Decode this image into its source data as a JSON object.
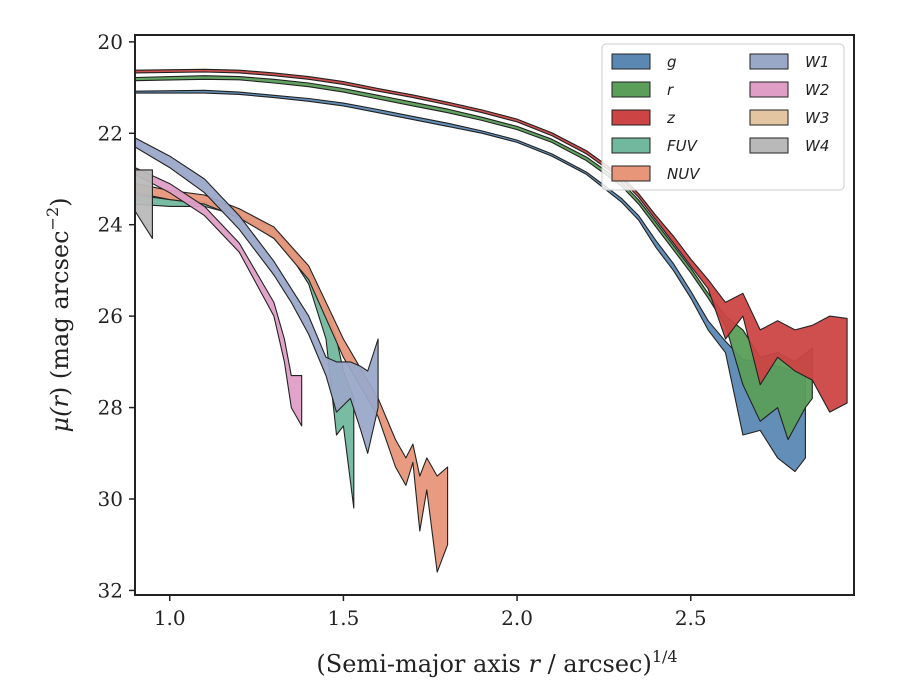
{
  "chart_data": {
    "type": "area",
    "xlabel_text": "(Semi-major axis ",
    "xlabel_var": "r",
    "xlabel_unit": " / arcsec)",
    "xlabel_exp": "1/4",
    "ylabel_prefix": "μ(",
    "ylabel_var": "r",
    "ylabel_mid": ") (mag arcsec",
    "ylabel_exp": "−2",
    "ylabel_suffix": ")",
    "xlim": [
      0.9,
      2.97
    ],
    "ylim": [
      32.1,
      19.85
    ],
    "y_inverted": true,
    "xticks": [
      1.0,
      1.5,
      2.0,
      2.5
    ],
    "xtick_labels": [
      "1.0",
      "1.5",
      "2.0",
      "2.5"
    ],
    "yticks": [
      20,
      22,
      24,
      26,
      28,
      30,
      32
    ],
    "ytick_labels": [
      "20",
      "22",
      "24",
      "26",
      "28",
      "30",
      "32"
    ],
    "grid": false,
    "legend_position": "top-right",
    "legend_columns": 2,
    "series": [
      {
        "name": "g",
        "color": "#5b88b3",
        "lower": [
          [
            0.9,
            21.12
          ],
          [
            1.1,
            21.12
          ],
          [
            1.2,
            21.15
          ],
          [
            1.3,
            21.22
          ],
          [
            1.4,
            21.3
          ],
          [
            1.5,
            21.4
          ],
          [
            1.6,
            21.55
          ],
          [
            1.7,
            21.7
          ],
          [
            1.8,
            21.85
          ],
          [
            1.9,
            22.0
          ],
          [
            2.0,
            22.2
          ],
          [
            2.1,
            22.5
          ],
          [
            2.2,
            22.9
          ],
          [
            2.3,
            23.5
          ],
          [
            2.35,
            23.9
          ],
          [
            2.4,
            24.5
          ],
          [
            2.45,
            25.0
          ],
          [
            2.5,
            25.6
          ],
          [
            2.55,
            26.3
          ],
          [
            2.6,
            26.8
          ],
          [
            2.65,
            28.6
          ],
          [
            2.7,
            28.5
          ],
          [
            2.75,
            29.1
          ],
          [
            2.8,
            29.4
          ],
          [
            2.83,
            29.1
          ],
          [
            2.83,
            27.5
          ]
        ],
        "upper": [
          [
            0.9,
            21.08
          ],
          [
            1.1,
            21.06
          ],
          [
            1.2,
            21.1
          ],
          [
            1.3,
            21.17
          ],
          [
            1.4,
            21.24
          ],
          [
            1.5,
            21.34
          ],
          [
            1.6,
            21.48
          ],
          [
            1.7,
            21.63
          ],
          [
            1.8,
            21.78
          ],
          [
            1.9,
            21.95
          ],
          [
            2.0,
            22.15
          ],
          [
            2.1,
            22.45
          ],
          [
            2.2,
            22.85
          ],
          [
            2.3,
            23.42
          ],
          [
            2.35,
            23.8
          ],
          [
            2.4,
            24.35
          ],
          [
            2.45,
            24.85
          ],
          [
            2.5,
            25.45
          ],
          [
            2.55,
            26.1
          ],
          [
            2.6,
            26.55
          ],
          [
            2.65,
            26.95
          ],
          [
            2.7,
            27.0
          ],
          [
            2.75,
            27.1
          ],
          [
            2.8,
            27.2
          ],
          [
            2.83,
            27.3
          ]
        ]
      },
      {
        "name": "r",
        "color": "#5a9e5a",
        "lower": [
          [
            0.9,
            20.85
          ],
          [
            1.1,
            20.82
          ],
          [
            1.2,
            20.83
          ],
          [
            1.3,
            20.9
          ],
          [
            1.4,
            20.98
          ],
          [
            1.5,
            21.1
          ],
          [
            1.6,
            21.25
          ],
          [
            1.7,
            21.4
          ],
          [
            1.8,
            21.55
          ],
          [
            1.9,
            21.72
          ],
          [
            2.0,
            21.92
          ],
          [
            2.1,
            22.2
          ],
          [
            2.2,
            22.6
          ],
          [
            2.3,
            23.15
          ],
          [
            2.35,
            23.55
          ],
          [
            2.4,
            24.05
          ],
          [
            2.45,
            24.55
          ],
          [
            2.5,
            25.05
          ],
          [
            2.55,
            25.6
          ],
          [
            2.6,
            26.2
          ],
          [
            2.65,
            27.5
          ],
          [
            2.7,
            28.3
          ],
          [
            2.75,
            28.0
          ],
          [
            2.78,
            28.7
          ],
          [
            2.83,
            28.0
          ],
          [
            2.85,
            27.8
          ]
        ],
        "upper": [
          [
            0.9,
            20.78
          ],
          [
            1.1,
            20.74
          ],
          [
            1.2,
            20.76
          ],
          [
            1.3,
            20.82
          ],
          [
            1.4,
            20.9
          ],
          [
            1.5,
            21.02
          ],
          [
            1.6,
            21.17
          ],
          [
            1.7,
            21.32
          ],
          [
            1.8,
            21.47
          ],
          [
            1.9,
            21.65
          ],
          [
            2.0,
            21.85
          ],
          [
            2.1,
            22.13
          ],
          [
            2.2,
            22.52
          ],
          [
            2.3,
            23.06
          ],
          [
            2.35,
            23.46
          ],
          [
            2.4,
            23.95
          ],
          [
            2.45,
            24.45
          ],
          [
            2.5,
            24.95
          ],
          [
            2.55,
            25.5
          ],
          [
            2.6,
            26.0
          ],
          [
            2.65,
            26.3
          ],
          [
            2.7,
            26.9
          ],
          [
            2.75,
            26.8
          ],
          [
            2.8,
            27.0
          ],
          [
            2.85,
            26.7
          ]
        ]
      },
      {
        "name": "z",
        "color": "#cc4444",
        "lower": [
          [
            0.9,
            20.68
          ],
          [
            1.1,
            20.66
          ],
          [
            1.2,
            20.68
          ],
          [
            1.3,
            20.74
          ],
          [
            1.4,
            20.82
          ],
          [
            1.5,
            20.93
          ],
          [
            1.6,
            21.08
          ],
          [
            1.7,
            21.22
          ],
          [
            1.8,
            21.38
          ],
          [
            1.9,
            21.55
          ],
          [
            2.0,
            21.75
          ],
          [
            2.1,
            22.05
          ],
          [
            2.2,
            22.45
          ],
          [
            2.3,
            23.0
          ],
          [
            2.35,
            23.4
          ],
          [
            2.4,
            23.9
          ],
          [
            2.45,
            24.4
          ],
          [
            2.5,
            24.9
          ],
          [
            2.55,
            25.4
          ],
          [
            2.6,
            26.5
          ],
          [
            2.65,
            26.0
          ],
          [
            2.7,
            27.5
          ],
          [
            2.75,
            26.9
          ],
          [
            2.8,
            27.2
          ],
          [
            2.85,
            27.4
          ],
          [
            2.9,
            28.1
          ],
          [
            2.95,
            27.9
          ]
        ],
        "upper": [
          [
            0.9,
            20.62
          ],
          [
            1.1,
            20.6
          ],
          [
            1.2,
            20.62
          ],
          [
            1.3,
            20.68
          ],
          [
            1.4,
            20.76
          ],
          [
            1.5,
            20.87
          ],
          [
            1.6,
            21.02
          ],
          [
            1.7,
            21.16
          ],
          [
            1.8,
            21.32
          ],
          [
            1.9,
            21.49
          ],
          [
            2.0,
            21.69
          ],
          [
            2.1,
            21.99
          ],
          [
            2.2,
            22.38
          ],
          [
            2.3,
            22.93
          ],
          [
            2.35,
            23.32
          ],
          [
            2.4,
            23.8
          ],
          [
            2.45,
            24.25
          ],
          [
            2.5,
            24.75
          ],
          [
            2.55,
            25.2
          ],
          [
            2.6,
            25.7
          ],
          [
            2.65,
            25.5
          ],
          [
            2.7,
            26.3
          ],
          [
            2.75,
            26.1
          ],
          [
            2.8,
            26.3
          ],
          [
            2.85,
            26.2
          ],
          [
            2.9,
            26.0
          ],
          [
            2.95,
            26.05
          ]
        ]
      },
      {
        "name": "FUV",
        "color": "#72b89e",
        "lower": [
          [
            0.9,
            23.55
          ],
          [
            1.0,
            23.6
          ],
          [
            1.1,
            23.6
          ],
          [
            1.2,
            23.8
          ],
          [
            1.3,
            24.3
          ],
          [
            1.35,
            24.7
          ],
          [
            1.4,
            25.3
          ],
          [
            1.45,
            26.5
          ],
          [
            1.48,
            28.6
          ],
          [
            1.5,
            28.4
          ],
          [
            1.53,
            30.2
          ]
        ],
        "upper": [
          [
            0.9,
            23.35
          ],
          [
            1.0,
            23.45
          ],
          [
            1.1,
            23.5
          ],
          [
            1.2,
            23.65
          ],
          [
            1.3,
            24.1
          ],
          [
            1.35,
            24.5
          ],
          [
            1.4,
            25.0
          ],
          [
            1.45,
            25.8
          ],
          [
            1.48,
            26.5
          ],
          [
            1.5,
            27.2
          ],
          [
            1.53,
            27.8
          ]
        ]
      },
      {
        "name": "NUV",
        "color": "#e8967a",
        "lower": [
          [
            0.9,
            23.3
          ],
          [
            1.0,
            23.45
          ],
          [
            1.1,
            23.55
          ],
          [
            1.2,
            23.85
          ],
          [
            1.3,
            24.3
          ],
          [
            1.4,
            25.2
          ],
          [
            1.5,
            26.9
          ],
          [
            1.6,
            28.2
          ],
          [
            1.65,
            29.3
          ],
          [
            1.68,
            29.7
          ],
          [
            1.7,
            29.2
          ],
          [
            1.72,
            30.7
          ],
          [
            1.74,
            29.8
          ],
          [
            1.77,
            31.6
          ],
          [
            1.8,
            31.0
          ]
        ],
        "upper": [
          [
            0.9,
            23.1
          ],
          [
            1.0,
            23.25
          ],
          [
            1.1,
            23.35
          ],
          [
            1.2,
            23.65
          ],
          [
            1.3,
            24.05
          ],
          [
            1.4,
            24.9
          ],
          [
            1.5,
            26.5
          ],
          [
            1.6,
            27.8
          ],
          [
            1.65,
            28.7
          ],
          [
            1.68,
            29.1
          ],
          [
            1.7,
            28.8
          ],
          [
            1.72,
            29.5
          ],
          [
            1.74,
            29.1
          ],
          [
            1.77,
            29.5
          ],
          [
            1.8,
            29.3
          ]
        ]
      },
      {
        "name": "W1",
        "color": "#9aa8c8",
        "lower": [
          [
            0.9,
            22.3
          ],
          [
            1.0,
            22.75
          ],
          [
            1.1,
            23.3
          ],
          [
            1.2,
            24.1
          ],
          [
            1.3,
            25.1
          ],
          [
            1.35,
            25.7
          ],
          [
            1.4,
            26.4
          ],
          [
            1.45,
            27.3
          ],
          [
            1.48,
            28.1
          ],
          [
            1.52,
            27.8
          ],
          [
            1.55,
            28.5
          ],
          [
            1.57,
            29.0
          ],
          [
            1.6,
            28.0
          ]
        ],
        "upper": [
          [
            0.9,
            22.1
          ],
          [
            1.0,
            22.5
          ],
          [
            1.1,
            23.0
          ],
          [
            1.2,
            23.8
          ],
          [
            1.3,
            24.8
          ],
          [
            1.35,
            25.4
          ],
          [
            1.4,
            26.0
          ],
          [
            1.45,
            26.9
          ],
          [
            1.48,
            27.0
          ],
          [
            1.52,
            27.0
          ],
          [
            1.55,
            27.1
          ],
          [
            1.57,
            27.2
          ],
          [
            1.6,
            26.5
          ]
        ]
      },
      {
        "name": "W2",
        "color": "#df9ec6",
        "lower": [
          [
            0.9,
            22.9
          ],
          [
            1.0,
            23.3
          ],
          [
            1.1,
            23.8
          ],
          [
            1.2,
            24.6
          ],
          [
            1.3,
            26.0
          ],
          [
            1.33,
            27.0
          ],
          [
            1.35,
            28.0
          ],
          [
            1.38,
            28.4
          ]
        ],
        "upper": [
          [
            0.9,
            22.75
          ],
          [
            1.0,
            23.1
          ],
          [
            1.1,
            23.6
          ],
          [
            1.2,
            24.4
          ],
          [
            1.3,
            25.7
          ],
          [
            1.33,
            26.5
          ],
          [
            1.35,
            27.3
          ],
          [
            1.38,
            27.3
          ]
        ]
      },
      {
        "name": "W3",
        "color": "#e3c5a2",
        "lower": [],
        "upper": []
      },
      {
        "name": "W4",
        "color": "#b9b9b9",
        "lower": [
          [
            0.9,
            23.7
          ],
          [
            0.95,
            24.3
          ]
        ],
        "upper": [
          [
            0.9,
            22.8
          ],
          [
            0.95,
            22.8
          ]
        ]
      }
    ]
  }
}
